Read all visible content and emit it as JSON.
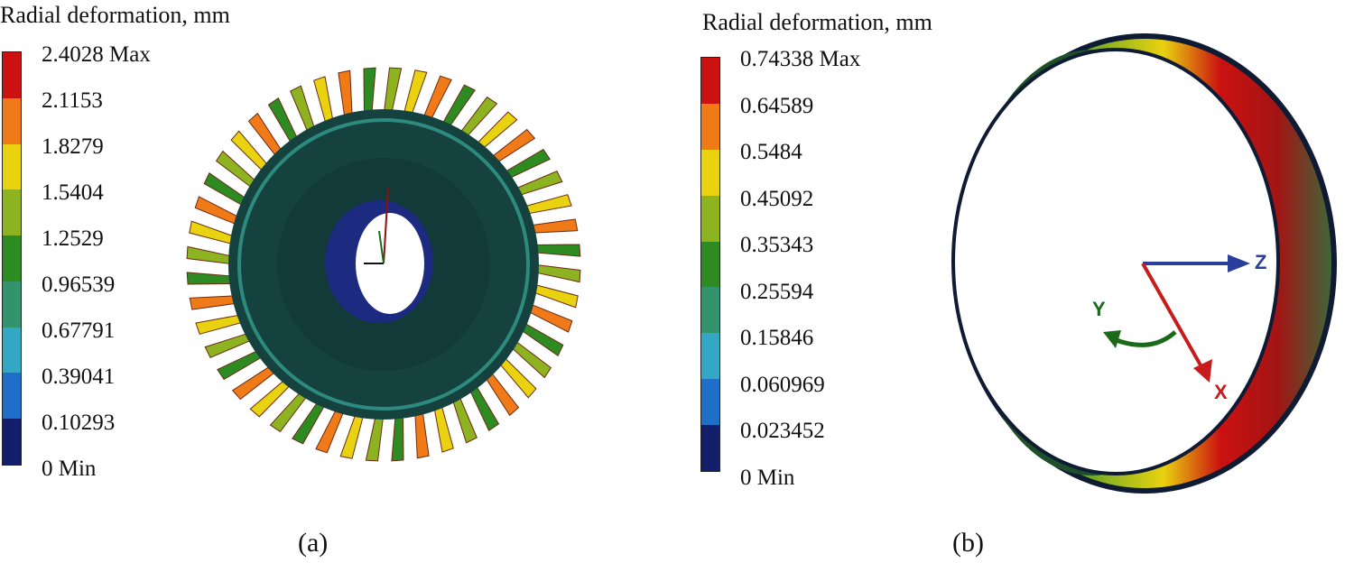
{
  "panel_a": {
    "title": "Radial deformation, mm",
    "legend": [
      {
        "label": "2.4028 Max",
        "color": "#cc1111"
      },
      {
        "label": "2.1153",
        "color": "#f07a18"
      },
      {
        "label": "1.8279",
        "color": "#e9d20f"
      },
      {
        "label": "1.5404",
        "color": "#8db320"
      },
      {
        "label": "1.2529",
        "color": "#2e8b22"
      },
      {
        "label": "0.96539",
        "color": "#32936c"
      },
      {
        "label": "0.67791",
        "color": "#34a7c4"
      },
      {
        "label": "0.39041",
        "color": "#1f6fc9"
      },
      {
        "label": "0.10293",
        "color": "#141f6b"
      },
      {
        "label": "0 Min",
        "color": "#141f6b"
      }
    ],
    "caption": "(a)"
  },
  "panel_b": {
    "title": "Radial deformation, mm",
    "legend": [
      {
        "label": "0.74338 Max",
        "color": "#cc1111"
      },
      {
        "label": "0.64589",
        "color": "#f07a18"
      },
      {
        "label": "0.5484",
        "color": "#e9d20f"
      },
      {
        "label": "0.45092",
        "color": "#8db320"
      },
      {
        "label": "0.35343",
        "color": "#2e8b22"
      },
      {
        "label": "0.25594",
        "color": "#32936c"
      },
      {
        "label": "0.15846",
        "color": "#34a7c4"
      },
      {
        "label": "0.060969",
        "color": "#1f6fc9"
      },
      {
        "label": "0.023452",
        "color": "#141f6b"
      },
      {
        "label": "0 Min",
        "color": "#141f6b"
      }
    ],
    "axes": {
      "z": "Z",
      "y": "Y",
      "x": "X"
    },
    "caption": "(b)"
  }
}
